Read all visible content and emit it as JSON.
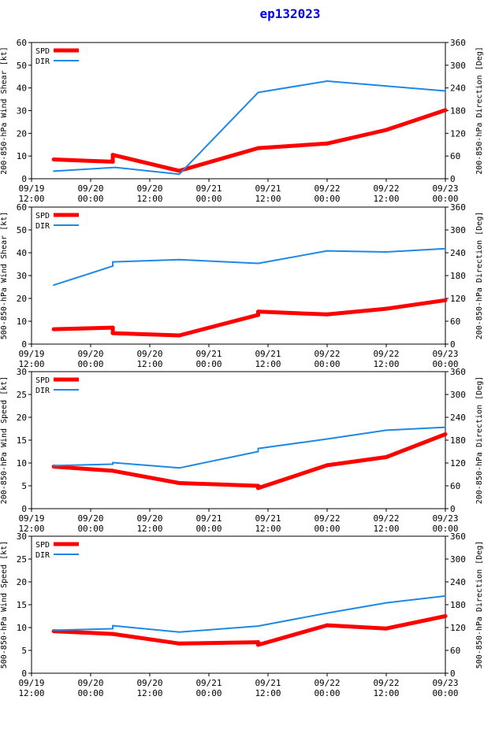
{
  "title": "ep132023",
  "colors": {
    "spd": "#ff0000",
    "dir": "#1e88e5",
    "axis": "#000000"
  },
  "legend": [
    "SPD",
    "DIR"
  ],
  "x_tick_labels": [
    [
      "09/19",
      "12:00"
    ],
    [
      "09/20",
      "00:00"
    ],
    [
      "09/20",
      "12:00"
    ],
    [
      "09/21",
      "00:00"
    ],
    [
      "09/21",
      "12:00"
    ],
    [
      "09/22",
      "00:00"
    ],
    [
      "09/22",
      "12:00"
    ],
    [
      "09/23",
      "00:00"
    ]
  ],
  "chart_data": [
    {
      "type": "line",
      "ylabel_left": "200-850-hPa Wind Shear [kt]",
      "ylabel_right": "200-850-hPa Direction [Deg]",
      "ylim_left": [
        0,
        60
      ],
      "yticks_left": [
        0,
        10,
        20,
        30,
        40,
        50,
        60
      ],
      "ylim_right": [
        0,
        360
      ],
      "yticks_right": [
        0,
        60,
        120,
        180,
        240,
        300,
        360
      ],
      "xlim_hours": [
        0,
        84
      ],
      "series": [
        {
          "name": "SPD",
          "x": [
            4.5,
            16.5,
            16.5,
            30,
            46,
            60,
            72,
            84
          ],
          "values": [
            8.5,
            7.5,
            10.5,
            3.5,
            13.5,
            15.5,
            21.5,
            30.2
          ]
        },
        {
          "name": "DIR",
          "x": [
            4.5,
            17,
            30,
            46,
            60,
            72,
            84
          ],
          "values": [
            20,
            30,
            12,
            228,
            258,
            245,
            232
          ]
        }
      ]
    },
    {
      "type": "line",
      "ylabel_left": "500-850-hPa Wind Shear [kt]",
      "ylabel_right": "200-850-hPa Direction [Deg]",
      "ylim_left": [
        0,
        60
      ],
      "yticks_left": [
        0,
        10,
        20,
        30,
        40,
        50,
        60
      ],
      "ylim_right": [
        0,
        360
      ],
      "yticks_right": [
        0,
        60,
        120,
        180,
        240,
        300,
        360
      ],
      "xlim_hours": [
        0,
        84
      ],
      "series": [
        {
          "name": "SPD",
          "x": [
            4.5,
            16.5,
            16.5,
            30,
            46,
            46,
            60,
            72,
            84
          ],
          "values": [
            6.5,
            7.2,
            4.8,
            3.8,
            12.8,
            14.2,
            13.0,
            15.5,
            19.2
          ]
        },
        {
          "name": "DIR",
          "x": [
            4.5,
            16.5,
            16.5,
            30,
            46,
            60,
            72,
            84
          ],
          "values": [
            155,
            205,
            216,
            222,
            212,
            245,
            242,
            251
          ]
        }
      ]
    },
    {
      "type": "line",
      "ylabel_left": "200-850-hPa Wind Speed [kt]",
      "ylabel_right": "200-850-hPa Direction [Deg]",
      "ylim_left": [
        0,
        30
      ],
      "yticks_left": [
        0,
        5,
        10,
        15,
        20,
        25,
        30
      ],
      "ylim_right": [
        0,
        360
      ],
      "yticks_right": [
        0,
        60,
        120,
        180,
        240,
        300,
        360
      ],
      "xlim_hours": [
        0,
        84
      ],
      "series": [
        {
          "name": "SPD",
          "x": [
            4.5,
            16.5,
            30,
            46,
            46,
            60,
            72,
            84
          ],
          "values": [
            9.2,
            8.3,
            5.6,
            5.0,
            4.5,
            9.5,
            11.3,
            16.3
          ]
        },
        {
          "name": "DIR",
          "x": [
            4.5,
            16.5,
            16.5,
            30,
            46,
            46,
            60,
            72,
            84
          ],
          "values": [
            113,
            117,
            121,
            107,
            150,
            158,
            183,
            206,
            214
          ]
        }
      ]
    },
    {
      "type": "line",
      "ylabel_left": "500-850-hPa Wind Speed [kt]",
      "ylabel_right": "500-850-hPa Direction [Deg]",
      "ylim_left": [
        0,
        30
      ],
      "yticks_left": [
        0,
        5,
        10,
        15,
        20,
        25,
        30
      ],
      "ylim_right": [
        0,
        360
      ],
      "yticks_right": [
        0,
        60,
        120,
        180,
        240,
        300,
        360
      ],
      "xlim_hours": [
        0,
        84
      ],
      "series": [
        {
          "name": "SPD",
          "x": [
            4.5,
            16.5,
            30,
            46,
            46,
            60,
            72,
            84
          ],
          "values": [
            9.2,
            8.6,
            6.5,
            6.8,
            6.2,
            10.5,
            9.8,
            12.5
          ]
        },
        {
          "name": "DIR",
          "x": [
            4.5,
            16.5,
            16.5,
            30,
            46,
            60,
            72,
            84
          ],
          "values": [
            113,
            117,
            125,
            108,
            124,
            158,
            185,
            203
          ]
        }
      ]
    }
  ]
}
